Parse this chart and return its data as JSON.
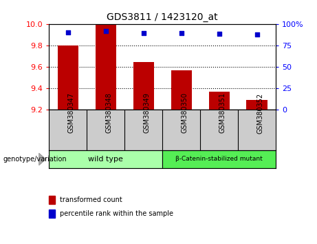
{
  "title": "GDS3811 / 1423120_at",
  "samples": [
    "GSM380347",
    "GSM380348",
    "GSM380349",
    "GSM380350",
    "GSM380351",
    "GSM380352"
  ],
  "bar_values": [
    9.8,
    10.0,
    9.65,
    9.57,
    9.37,
    9.29
  ],
  "percentile_values": [
    91,
    92,
    90,
    90,
    89,
    88
  ],
  "ylim_left": [
    9.2,
    10.0
  ],
  "ylim_right": [
    0,
    100
  ],
  "yticks_left": [
    9.2,
    9.4,
    9.6,
    9.8,
    10.0
  ],
  "yticks_right": [
    0,
    25,
    50,
    75,
    100
  ],
  "ytick_labels_right": [
    "0",
    "25",
    "50",
    "75",
    "100%"
  ],
  "bar_color": "#bb0000",
  "dot_color": "#0000cc",
  "bar_bottom": 9.2,
  "groups": [
    {
      "label": "wild type",
      "indices": [
        0,
        1,
        2
      ],
      "color": "#aaffaa"
    },
    {
      "label": "β-Catenin-stabilized mutant",
      "indices": [
        3,
        4,
        5
      ],
      "color": "#55ee55"
    }
  ],
  "group_label": "genotype/variation",
  "legend_items": [
    {
      "color": "#bb0000",
      "label": "transformed count"
    },
    {
      "color": "#0000cc",
      "label": "percentile rank within the sample"
    }
  ],
  "plot_bg_color": "#ffffff",
  "tick_area_bg": "#cccccc",
  "gridlines": [
    9.4,
    9.6,
    9.8
  ]
}
